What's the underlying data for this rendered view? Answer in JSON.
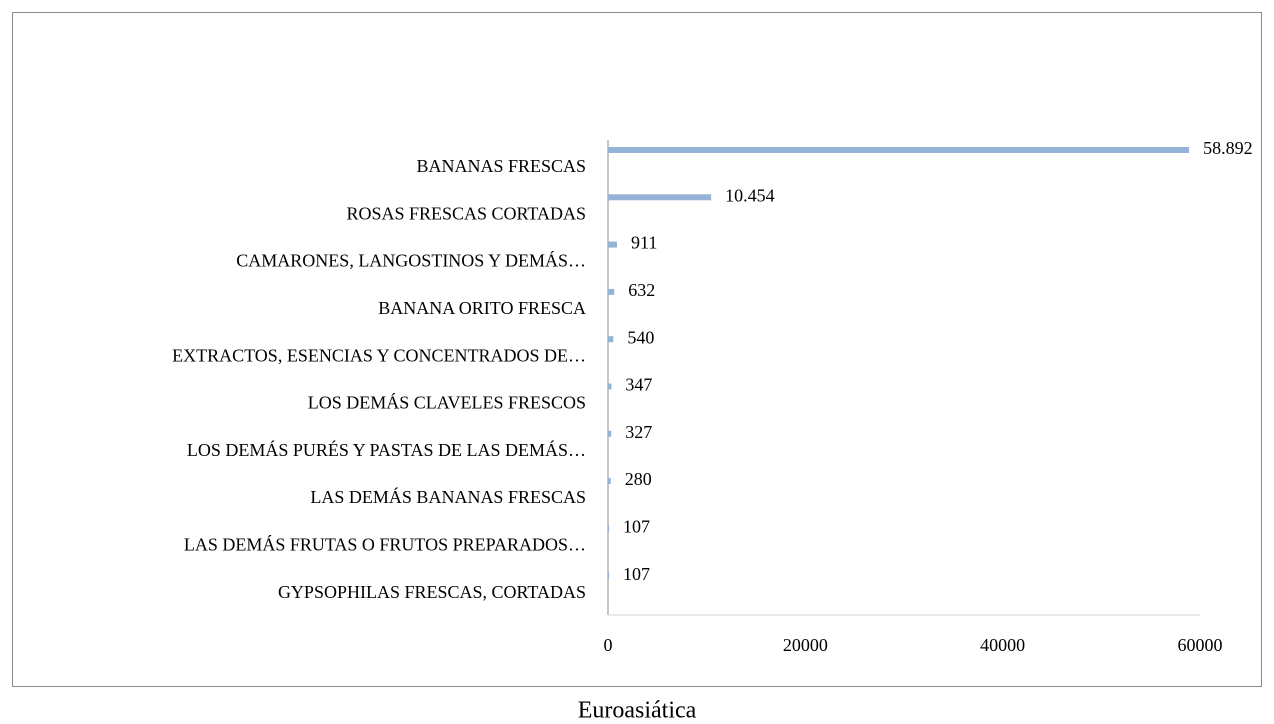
{
  "chart_data": {
    "type": "bar",
    "orientation": "horizontal",
    "title": "Euroasiática",
    "categories": [
      "BANANAS FRESCAS",
      "ROSAS FRESCAS CORTADAS",
      "CAMARONES, LANGOSTINOS Y DEMÁS…",
      "BANANA ORITO FRESCA",
      "EXTRACTOS, ESENCIAS Y CONCENTRADOS DE…",
      "LOS DEMÁS CLAVELES FRESCOS",
      "LOS DEMÁS PURÉS Y PASTAS DE LAS DEMÁS…",
      "LAS DEMÁS BANANAS FRESCAS",
      "LAS DEMÁS FRUTAS O FRUTOS PREPARADOS…",
      "GYPSOPHILAS FRESCAS, CORTADAS"
    ],
    "values": [
      58892,
      10454,
      911,
      632,
      540,
      347,
      327,
      280,
      107,
      107
    ],
    "value_labels": [
      "58.892",
      "10.454",
      "911",
      "632",
      "540",
      "347",
      "327",
      "280",
      "107",
      "107"
    ],
    "color": "#95b3d7",
    "xlim": [
      0,
      60000
    ],
    "xticks": [
      0,
      20000,
      40000,
      60000
    ],
    "grid": false
  }
}
